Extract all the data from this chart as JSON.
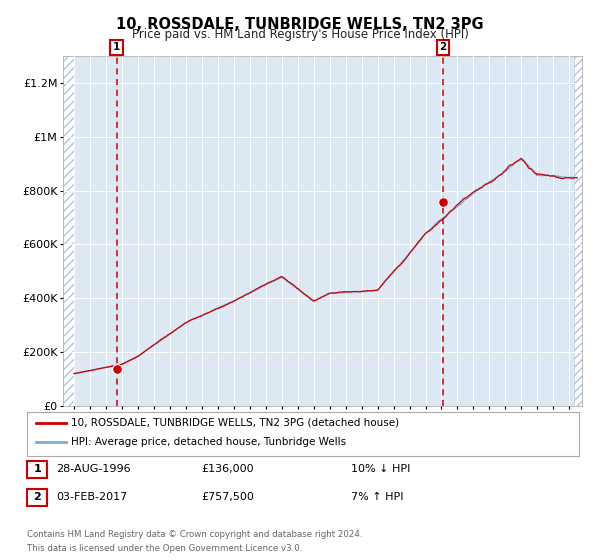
{
  "title": "10, ROSSDALE, TUNBRIDGE WELLS, TN2 3PG",
  "subtitle": "Price paid vs. HM Land Registry's House Price Index (HPI)",
  "background_color": "#dce9f5",
  "plot_bg": "#dce9f5",
  "grid_color": "#ffffff",
  "sale1": {
    "date_num": 1996.66,
    "price": 136000,
    "label": "1",
    "date_str": "28-AUG-1996",
    "price_str": "£136,000",
    "pct_str": "10% ↓ HPI"
  },
  "sale2": {
    "date_num": 2017.09,
    "price": 757500,
    "label": "2",
    "date_str": "03-FEB-2017",
    "price_str": "£757,500",
    "pct_str": "7% ↑ HPI"
  },
  "legend_line1": "10, ROSSDALE, TUNBRIDGE WELLS, TN2 3PG (detached house)",
  "legend_line2": "HPI: Average price, detached house, Tunbridge Wells",
  "footer1": "Contains HM Land Registry data © Crown copyright and database right 2024.",
  "footer2": "This data is licensed under the Open Government Licence v3.0.",
  "hpi_color": "#7aaed4",
  "price_color": "#cc0000",
  "marker_color": "#cc0000",
  "vline_color": "#cc0000",
  "ylim_max": 1300000,
  "xmin": 1993.3,
  "xmax": 2025.8,
  "hpi_breakpoints": [
    1994,
    1997,
    1998,
    2001,
    2004,
    2007,
    2009,
    2010,
    2013,
    2016,
    2019,
    2022,
    2023,
    2025
  ],
  "hpi_values": [
    120000,
    155000,
    185000,
    310000,
    390000,
    480000,
    390000,
    420000,
    430000,
    640000,
    790000,
    920000,
    860000,
    850000
  ],
  "yticks": [
    0,
    200000,
    400000,
    600000,
    800000,
    1000000,
    1200000
  ],
  "ylabels": [
    "£0",
    "£200K",
    "£400K",
    "£600K",
    "£800K",
    "£1M",
    "£1.2M"
  ],
  "xstart": 1994,
  "xend": 2025
}
